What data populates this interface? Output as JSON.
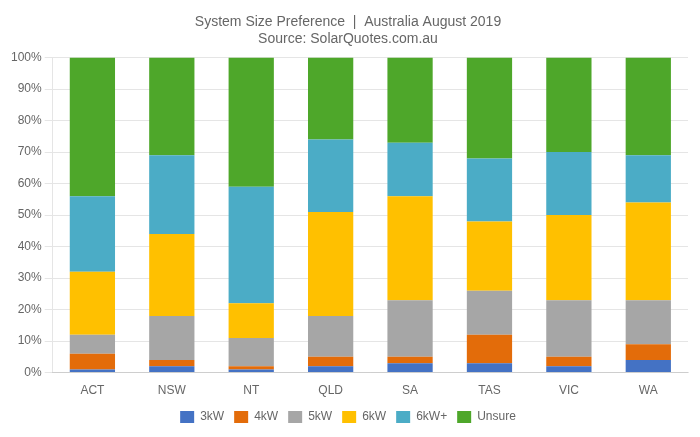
{
  "chart_data": {
    "type": "bar",
    "stacked": true,
    "title": "System Size Preference  |  Australia August 2019",
    "subtitle": "Source: SolarQuotes.com.au",
    "categories": [
      "ACT",
      "NSW",
      "NT",
      "QLD",
      "SA",
      "TAS",
      "VIC",
      "WA"
    ],
    "series": [
      {
        "name": "3kW",
        "color": "#4472C4",
        "values": [
          1,
          2,
          1,
          2,
          3,
          3,
          2,
          4
        ]
      },
      {
        "name": "4kW",
        "color": "#E36C0A",
        "values": [
          5,
          2,
          1,
          3,
          2,
          9,
          3,
          5
        ]
      },
      {
        "name": "5kW",
        "color": "#A6A6A6",
        "values": [
          6,
          14,
          9,
          13,
          18,
          14,
          18,
          14
        ]
      },
      {
        "name": "6kW",
        "color": "#FFC000",
        "values": [
          20,
          26,
          11,
          33,
          33,
          22,
          27,
          31
        ]
      },
      {
        "name": "6kW+",
        "color": "#4BACC6",
        "values": [
          24,
          25,
          37,
          23,
          17,
          20,
          20,
          15
        ]
      },
      {
        "name": "Unsure",
        "color": "#4EA72A",
        "values": [
          44,
          31,
          41,
          26,
          27,
          32,
          30,
          31
        ]
      }
    ],
    "ylim": [
      0,
      100
    ],
    "yticks": [
      {
        "value": 0,
        "label": "0%"
      },
      {
        "value": 10,
        "label": "10%"
      },
      {
        "value": 20,
        "label": "20%"
      },
      {
        "value": 30,
        "label": "30%"
      },
      {
        "value": 40,
        "label": "40%"
      },
      {
        "value": 50,
        "label": "50%"
      },
      {
        "value": 60,
        "label": "60%"
      },
      {
        "value": 70,
        "label": "70%"
      },
      {
        "value": 80,
        "label": "80%"
      },
      {
        "value": 90,
        "label": "90%"
      },
      {
        "value": 100,
        "label": "100%"
      }
    ],
    "grid": true,
    "legend": "bottom"
  }
}
